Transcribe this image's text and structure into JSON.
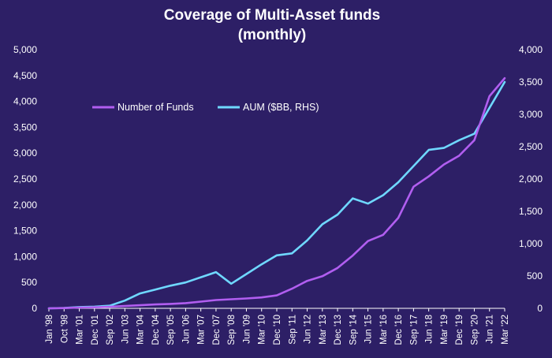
{
  "chart_data": {
    "type": "line",
    "title": "Coverage of Multi-Asset funds",
    "subtitle": "(monthly)",
    "xlabel": "",
    "ylabel": "",
    "ylabel_right": "",
    "grid": false,
    "legend_position": "top-left",
    "colors": {
      "background": "#2d1f66",
      "funds": "#b15ef0",
      "aum": "#6fd8ff",
      "text": "#ffffff"
    },
    "x_ticks": [
      "Jan '98",
      "Oct '98",
      "Mar '01",
      "Dec '01",
      "Sep '02",
      "Jun '03",
      "Mar '04",
      "Dec '04",
      "Sep '05",
      "Jun '06",
      "Mar '07",
      "Dec '07",
      "Sep '08",
      "Jun '09",
      "Mar '10",
      "Dec '10",
      "Sep '11",
      "Jun '12",
      "Mar '13",
      "Dec '13",
      "Sep '14",
      "Jun '15",
      "Mar '16",
      "Dec '16",
      "Sep '17",
      "Jun '18",
      "Mar '19",
      "Dec '19",
      "Sep '20",
      "Jun '21",
      "Mar '22"
    ],
    "y_left": {
      "min": 0,
      "max": 5000,
      "ticks": [
        "0",
        "500",
        "1,000",
        "1,500",
        "2,000",
        "2,500",
        "3,000",
        "3,500",
        "4,000",
        "4,500",
        "5,000"
      ]
    },
    "y_right": {
      "min": 0,
      "max": 4000,
      "ticks": [
        "0",
        "500",
        "1,000",
        "1,500",
        "2,000",
        "2,500",
        "3,000",
        "3,500",
        "4,000"
      ]
    },
    "series": [
      {
        "name": "Number of Funds",
        "axis": "left",
        "x": [
          "Jan '98",
          "Oct '98",
          "Mar '01",
          "Dec '01",
          "Sep '02",
          "Jun '03",
          "Mar '04",
          "Dec '04",
          "Sep '05",
          "Jun '06",
          "Mar '07",
          "Dec '07",
          "Sep '08",
          "Jun '09",
          "Mar '10",
          "Dec '10",
          "Sep '11",
          "Jun '12",
          "Mar '13",
          "Dec '13",
          "Sep '14",
          "Jun '15",
          "Mar '16",
          "Dec '16",
          "Sep '17",
          "Jun '18",
          "Mar '19",
          "Dec '19",
          "Sep '20",
          "Jun '21",
          "Mar '22"
        ],
        "values": [
          0,
          5,
          15,
          20,
          30,
          45,
          60,
          75,
          85,
          100,
          130,
          160,
          175,
          190,
          210,
          250,
          380,
          530,
          620,
          780,
          1020,
          1300,
          1420,
          1750,
          2350,
          2550,
          2780,
          2950,
          3250,
          4100,
          4450
        ]
      },
      {
        "name": "AUM ($BB, RHS)",
        "axis": "right",
        "x": [
          "Jan '98",
          "Oct '98",
          "Mar '01",
          "Dec '01",
          "Sep '02",
          "Jun '03",
          "Mar '04",
          "Dec '04",
          "Sep '05",
          "Jun '06",
          "Mar '07",
          "Dec '07",
          "Sep '08",
          "Jun '09",
          "Mar '10",
          "Dec '10",
          "Sep '11",
          "Jun '12",
          "Mar '13",
          "Dec '13",
          "Sep '14",
          "Jun '15",
          "Mar '16",
          "Dec '16",
          "Sep '17",
          "Jun '18",
          "Mar '19",
          "Dec '19",
          "Sep '20",
          "Jun '21",
          "Mar '22"
        ],
        "values": [
          0,
          5,
          20,
          25,
          40,
          120,
          230,
          290,
          350,
          400,
          480,
          560,
          380,
          530,
          680,
          820,
          850,
          1050,
          1300,
          1450,
          1700,
          1620,
          1750,
          1950,
          2200,
          2450,
          2480,
          2600,
          2700,
          3100,
          3500
        ]
      }
    ]
  }
}
